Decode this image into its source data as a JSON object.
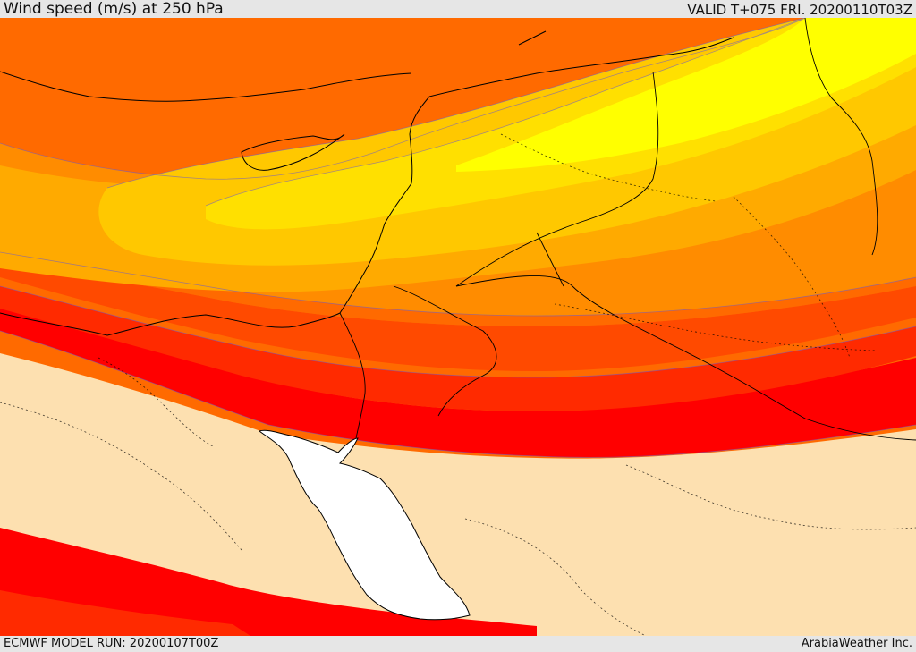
{
  "header": {
    "title": "Wind speed (m/s) at 250 hPa",
    "valid": "VALID T+075 FRI. 20200110T03Z"
  },
  "footer": {
    "model_run": "ECMWF MODEL RUN: 20200107T00Z",
    "credit": "ArabiaWeather Inc."
  },
  "colors": {
    "calm": "#fde0b0",
    "band_red": "#ff0000",
    "band_redorange": "#ff2a00",
    "band_darkorange": "#ff4a00",
    "band_orange": "#ff6a00",
    "band_amber": "#ff8c00",
    "band_lightamber": "#ffaa00",
    "band_gold": "#ffc800",
    "band_yellowgold": "#ffe000",
    "band_yellow": "#ffff00",
    "sea": "#ffffff"
  }
}
